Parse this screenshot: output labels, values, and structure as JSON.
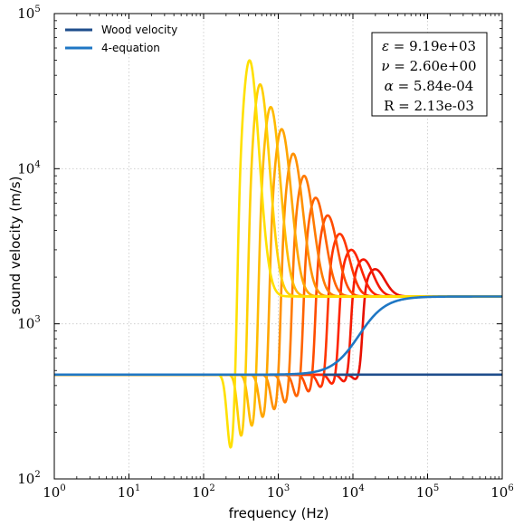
{
  "chart_data": {
    "type": "line",
    "title": "",
    "xlabel": "frequency (Hz)",
    "ylabel": "sound velocity (m/s)",
    "xscale": "log",
    "yscale": "log",
    "xlim": [
      1,
      1000000
    ],
    "ylim": [
      100,
      100000
    ],
    "grid": true,
    "legend_position": "top-left",
    "x_ticks": [
      {
        "value": 1,
        "base": "10",
        "exp": "0"
      },
      {
        "value": 10,
        "base": "10",
        "exp": "1"
      },
      {
        "value": 100,
        "base": "10",
        "exp": "2"
      },
      {
        "value": 1000,
        "base": "10",
        "exp": "3"
      },
      {
        "value": 10000,
        "base": "10",
        "exp": "4"
      },
      {
        "value": 100000,
        "base": "10",
        "exp": "5"
      },
      {
        "value": 1000000,
        "base": "10",
        "exp": "6"
      }
    ],
    "y_ticks": [
      {
        "value": 100,
        "base": "10",
        "exp": "2"
      },
      {
        "value": 1000,
        "base": "10",
        "exp": "3"
      },
      {
        "value": 10000,
        "base": "10",
        "exp": "4"
      },
      {
        "value": 100000,
        "base": "10",
        "exp": "5"
      }
    ],
    "legend": [
      {
        "name": "Wood velocity",
        "color": "#1f4e8c"
      },
      {
        "name": "4-equation",
        "color": "#1f77c4"
      }
    ],
    "series": [
      {
        "name": "Wood velocity",
        "color": "#1f4e8c",
        "kind": "wood",
        "low": 470,
        "break_x": 4000,
        "high": 470
      },
      {
        "name": "4-equation",
        "color": "#1f77c4",
        "kind": "transition",
        "low": 470,
        "high": 1500,
        "center": 12000,
        "width_decades": 0.45
      }
    ],
    "resonance_family": {
      "base_velocity": 470,
      "high_velocity": 1500,
      "curves": [
        {
          "f0": 260,
          "peak": 50000,
          "dip": 155,
          "color": "#ffe000"
        },
        {
          "f0": 360,
          "peak": 35000,
          "dip": 185,
          "color": "#ffcf00"
        },
        {
          "f0": 500,
          "peak": 25000,
          "dip": 215,
          "color": "#ffbb00"
        },
        {
          "f0": 700,
          "peak": 18000,
          "dip": 245,
          "color": "#ffa500"
        },
        {
          "f0": 1000,
          "peak": 12500,
          "dip": 275,
          "color": "#ff9000"
        },
        {
          "f0": 1400,
          "peak": 9000,
          "dip": 305,
          "color": "#ff7a00"
        },
        {
          "f0": 2000,
          "peak": 6500,
          "dip": 335,
          "color": "#ff6300"
        },
        {
          "f0": 2900,
          "peak": 5000,
          "dip": 360,
          "color": "#ff4c00"
        },
        {
          "f0": 4200,
          "peak": 3800,
          "dip": 385,
          "color": "#ff3600"
        },
        {
          "f0": 6000,
          "peak": 3000,
          "dip": 405,
          "color": "#ff2400"
        },
        {
          "f0": 8700,
          "peak": 2600,
          "dip": 420,
          "color": "#f51a00"
        },
        {
          "f0": 12500,
          "peak": 2250,
          "dip": 435,
          "color": "#e81000"
        }
      ]
    },
    "annotation": {
      "position": "top-right",
      "lines": [
        {
          "symbol": "ε",
          "text": " = 9.19e+03"
        },
        {
          "symbol": "ν",
          "text": " = 2.60e+00"
        },
        {
          "symbol": "α",
          "text": " = 5.84e-04"
        },
        {
          "symbol": "R",
          "text": " = 2.13e-03"
        }
      ]
    }
  }
}
